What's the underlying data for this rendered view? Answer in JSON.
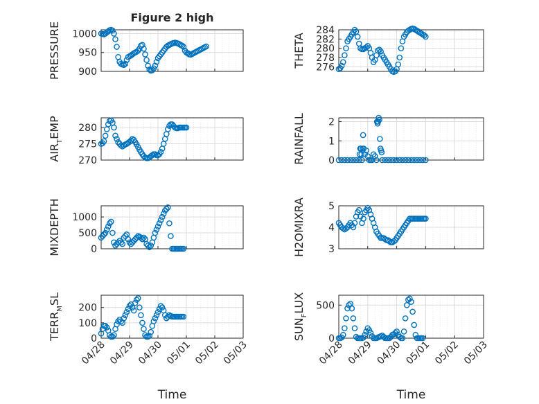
{
  "figure": {
    "title": "Figure 2 high"
  },
  "x_axis": {
    "label": "Time",
    "ticks": [
      "04/28",
      "04/29",
      "04/30",
      "05/01",
      "05/02",
      "05/03"
    ]
  },
  "chart_data": [
    {
      "type": "scatter",
      "name": "pressure-panel",
      "title": "Figure 2 high",
      "ylabel": "PRESSURE",
      "ylim": [
        900,
        1010
      ],
      "yticks": [
        900,
        950,
        1000
      ],
      "x": [
        0,
        0.05,
        0.1,
        0.15,
        0.2,
        0.25,
        0.3,
        0.35,
        0.4,
        0.45,
        0.5,
        0.55,
        0.6,
        0.65,
        0.7,
        0.75,
        0.8,
        0.85,
        0.9,
        0.95,
        1.0,
        1.05,
        1.1,
        1.15,
        1.2,
        1.25,
        1.3,
        1.35,
        1.4,
        1.45,
        1.5,
        1.55,
        1.6,
        1.65,
        1.7,
        1.75,
        1.8,
        1.85,
        1.9,
        1.95,
        2.0,
        2.05,
        2.1,
        2.15,
        2.2,
        2.25,
        2.3,
        2.35,
        2.4,
        2.45,
        2.5,
        2.55,
        2.6,
        2.65,
        2.7,
        2.75,
        2.8,
        2.85,
        2.9,
        2.95,
        3.0,
        3.05,
        3.1,
        3.15,
        3.2,
        3.25,
        3.3,
        3.35,
        3.4,
        3.45,
        3.5,
        3.55,
        3.6,
        3.65,
        3.7
      ],
      "values": [
        1000,
        999,
        998,
        1000,
        1003,
        1006,
        1009,
        1010,
        1008,
        1000,
        985,
        965,
        938,
        925,
        920,
        918,
        917,
        920,
        930,
        938,
        940,
        942,
        945,
        948,
        950,
        952,
        955,
        960,
        968,
        970,
        960,
        945,
        930,
        915,
        905,
        902,
        903,
        908,
        915,
        925,
        935,
        940,
        945,
        950,
        955,
        960,
        965,
        968,
        970,
        972,
        974,
        975,
        976,
        975,
        974,
        972,
        970,
        968,
        965,
        955,
        950,
        948,
        945,
        944,
        946,
        948,
        950,
        952,
        954,
        956,
        958,
        960,
        962,
        964,
        966
      ]
    },
    {
      "type": "scatter",
      "name": "theta-panel",
      "ylabel": "THETA",
      "ylim": [
        275,
        284
      ],
      "yticks": [
        276,
        278,
        280,
        282,
        284
      ],
      "x": [
        0,
        0.05,
        0.1,
        0.15,
        0.2,
        0.25,
        0.3,
        0.35,
        0.4,
        0.45,
        0.5,
        0.55,
        0.6,
        0.65,
        0.7,
        0.75,
        0.8,
        0.85,
        0.9,
        0.95,
        1.0,
        1.05,
        1.1,
        1.15,
        1.2,
        1.25,
        1.3,
        1.35,
        1.4,
        1.45,
        1.5,
        1.55,
        1.6,
        1.65,
        1.7,
        1.75,
        1.8,
        1.85,
        1.9,
        1.95,
        2.0,
        2.05,
        2.1,
        2.15,
        2.2,
        2.25,
        2.3,
        2.35,
        2.4,
        2.45,
        2.5,
        2.55,
        2.6,
        2.65,
        2.7,
        2.75,
        2.8,
        2.85,
        2.9,
        2.95,
        3.0
      ],
      "values": [
        275.5,
        275.7,
        276.2,
        277.0,
        278.5,
        280.0,
        281.5,
        282.0,
        282.5,
        283.0,
        283.5,
        284.0,
        283.6,
        282.5,
        281.0,
        280.0,
        279.8,
        279.8,
        280.0,
        280.2,
        280.5,
        280.0,
        279.0,
        278.0,
        277.0,
        277.5,
        278.5,
        279.5,
        279.7,
        279.3,
        278.5,
        278.0,
        277.5,
        277.0,
        276.5,
        276.0,
        275.5,
        275.0,
        274.9,
        275.0,
        275.5,
        276.5,
        278.0,
        280.0,
        281.5,
        282.5,
        283.0,
        283.5,
        283.8,
        284.0,
        284.2,
        284.3,
        284.2,
        284.0,
        283.8,
        283.6,
        283.4,
        283.2,
        283.0,
        282.8,
        282.5
      ]
    },
    {
      "type": "scatter",
      "name": "air-temp-panel",
      "ylabel": "AIR_TEMP",
      "ylim": [
        270,
        283
      ],
      "yticks": [
        270,
        275,
        280
      ],
      "x": [
        0,
        0.05,
        0.1,
        0.15,
        0.2,
        0.25,
        0.3,
        0.35,
        0.4,
        0.45,
        0.5,
        0.55,
        0.6,
        0.65,
        0.7,
        0.75,
        0.8,
        0.85,
        0.9,
        0.95,
        1.0,
        1.05,
        1.1,
        1.15,
        1.2,
        1.25,
        1.3,
        1.35,
        1.4,
        1.45,
        1.5,
        1.55,
        1.6,
        1.65,
        1.7,
        1.75,
        1.8,
        1.85,
        1.9,
        1.95,
        2.0,
        2.05,
        2.1,
        2.15,
        2.2,
        2.25,
        2.3,
        2.35,
        2.4,
        2.45,
        2.5,
        2.55,
        2.6,
        2.65,
        2.7,
        2.75,
        2.8,
        2.85,
        2.9,
        2.95,
        3.0
      ],
      "values": [
        275,
        275.2,
        275.8,
        277.5,
        279.5,
        281,
        282,
        282.2,
        281.5,
        280,
        277.5,
        276.5,
        275.5,
        275,
        274.5,
        274.2,
        274.5,
        274.8,
        275,
        275.3,
        275.6,
        276,
        276.5,
        276.2,
        275.5,
        274.8,
        274,
        273.2,
        272.5,
        271.8,
        271.2,
        270.8,
        270.6,
        270.6,
        270.8,
        271.2,
        271.5,
        271.8,
        271.8,
        271.5,
        271.5,
        271.8,
        272.5,
        273.5,
        275,
        276.5,
        278,
        279.5,
        280.5,
        281,
        281,
        280.5,
        280,
        279.8,
        279.8,
        280,
        280,
        280,
        280,
        280,
        280
      ]
    },
    {
      "type": "scatter",
      "name": "rainfall-panel",
      "ylabel": "RAINFALL",
      "ylim": [
        0,
        2.2
      ],
      "yticks": [
        0,
        1,
        2
      ],
      "x": [
        0,
        0.1,
        0.2,
        0.3,
        0.4,
        0.5,
        0.6,
        0.7,
        0.72,
        0.74,
        0.76,
        0.78,
        0.8,
        0.82,
        0.84,
        0.86,
        0.9,
        0.95,
        1.0,
        1.05,
        1.1,
        1.15,
        1.2,
        1.25,
        1.3,
        1.32,
        1.34,
        1.36,
        1.38,
        1.4,
        1.42,
        1.44,
        1.46,
        1.48,
        1.5,
        1.6,
        1.7,
        1.8,
        1.9,
        2.0,
        2.1,
        2.2,
        2.3,
        2.4,
        2.5,
        2.6,
        2.7,
        2.8,
        2.9,
        3.0
      ],
      "values": [
        0,
        0,
        0,
        0,
        0,
        0,
        0,
        0,
        0.3,
        0.6,
        0.6,
        0.3,
        0,
        0.6,
        1.3,
        0.6,
        0.3,
        0.5,
        0.2,
        0,
        0,
        0,
        0.3,
        0.2,
        0,
        2.0,
        1.9,
        2.0,
        2.2,
        2.1,
        1.1,
        0.6,
        0.5,
        0.4,
        0,
        0,
        0,
        0,
        0,
        0,
        0,
        0,
        0,
        0,
        0,
        0,
        0,
        0,
        0,
        0
      ]
    },
    {
      "type": "scatter",
      "name": "mixdepth-panel",
      "ylabel": "MIXDEPTH",
      "ylim": [
        0,
        1350
      ],
      "yticks": [
        0,
        500,
        1000
      ],
      "x": [
        0,
        0.05,
        0.1,
        0.15,
        0.2,
        0.25,
        0.3,
        0.35,
        0.4,
        0.45,
        0.5,
        0.55,
        0.6,
        0.65,
        0.7,
        0.75,
        0.8,
        0.85,
        0.9,
        0.95,
        1.0,
        1.05,
        1.1,
        1.15,
        1.2,
        1.25,
        1.3,
        1.35,
        1.4,
        1.45,
        1.5,
        1.55,
        1.6,
        1.65,
        1.7,
        1.75,
        1.8,
        1.85,
        1.9,
        1.95,
        2.0,
        2.05,
        2.1,
        2.15,
        2.2,
        2.25,
        2.3,
        2.35,
        2.4,
        2.45,
        2.5,
        2.55,
        2.6,
        2.65,
        2.7,
        2.75,
        2.8,
        2.85,
        2.9
      ],
      "values": [
        350,
        400,
        450,
        500,
        600,
        700,
        800,
        850,
        500,
        200,
        100,
        150,
        200,
        250,
        200,
        150,
        350,
        400,
        450,
        300,
        200,
        150,
        200,
        250,
        300,
        350,
        400,
        380,
        350,
        300,
        350,
        300,
        150,
        100,
        50,
        100,
        200,
        350,
        500,
        600,
        700,
        800,
        900,
        1000,
        1100,
        1200,
        1250,
        1300,
        800,
        400,
        0,
        0,
        0,
        0,
        0,
        0,
        0,
        0,
        0
      ]
    },
    {
      "type": "scatter",
      "name": "h2omixra-panel",
      "ylabel": "H2OMIXRA",
      "ylim": [
        3,
        5
      ],
      "yticks": [
        3,
        4,
        5
      ],
      "x": [
        0,
        0.05,
        0.1,
        0.15,
        0.2,
        0.25,
        0.3,
        0.35,
        0.4,
        0.45,
        0.5,
        0.55,
        0.6,
        0.65,
        0.7,
        0.75,
        0.8,
        0.85,
        0.9,
        0.95,
        1.0,
        1.05,
        1.1,
        1.15,
        1.2,
        1.25,
        1.3,
        1.35,
        1.4,
        1.45,
        1.5,
        1.55,
        1.6,
        1.65,
        1.7,
        1.75,
        1.8,
        1.85,
        1.9,
        1.95,
        2.0,
        2.05,
        2.1,
        2.15,
        2.2,
        2.25,
        2.3,
        2.35,
        2.4,
        2.45,
        2.5,
        2.55,
        2.6,
        2.65,
        2.7,
        2.75,
        2.8,
        2.85,
        2.9,
        2.95,
        3.0
      ],
      "values": [
        4.2,
        4.1,
        4.0,
        3.95,
        3.9,
        3.95,
        4.0,
        4.1,
        4.2,
        4.1,
        4.0,
        4.2,
        4.5,
        4.7,
        4.8,
        4.5,
        4.2,
        4.4,
        4.7,
        4.8,
        4.9,
        4.8,
        4.6,
        4.4,
        4.2,
        4.0,
        3.8,
        3.7,
        3.6,
        3.5,
        3.5,
        3.5,
        3.45,
        3.4,
        3.4,
        3.35,
        3.3,
        3.3,
        3.35,
        3.4,
        3.5,
        3.6,
        3.7,
        3.8,
        3.9,
        4.0,
        4.1,
        4.2,
        4.3,
        4.4,
        4.4,
        4.4,
        4.4,
        4.4,
        4.4,
        4.4,
        4.4,
        4.4,
        4.4,
        4.4,
        4.4
      ]
    },
    {
      "type": "scatter",
      "name": "terr-msl-panel",
      "ylabel": "TERR_MSL",
      "ylim": [
        0,
        280
      ],
      "yticks": [
        0,
        100,
        200
      ],
      "x": [
        0,
        0.05,
        0.1,
        0.15,
        0.2,
        0.25,
        0.3,
        0.35,
        0.4,
        0.45,
        0.5,
        0.55,
        0.6,
        0.65,
        0.7,
        0.75,
        0.8,
        0.85,
        0.9,
        0.95,
        1.0,
        1.05,
        1.1,
        1.15,
        1.2,
        1.25,
        1.3,
        1.35,
        1.4,
        1.45,
        1.5,
        1.55,
        1.6,
        1.65,
        1.7,
        1.75,
        1.8,
        1.85,
        1.9,
        1.95,
        2.0,
        2.05,
        2.1,
        2.15,
        2.2,
        2.25,
        2.3,
        2.35,
        2.4,
        2.45,
        2.5,
        2.55,
        2.6,
        2.65,
        2.7,
        2.75,
        2.8,
        2.85,
        2.9
      ],
      "values": [
        30,
        60,
        80,
        80,
        70,
        50,
        20,
        10,
        10,
        20,
        60,
        90,
        110,
        120,
        110,
        100,
        130,
        150,
        170,
        190,
        210,
        220,
        200,
        180,
        230,
        250,
        260,
        200,
        150,
        100,
        60,
        20,
        10,
        10,
        15,
        40,
        80,
        110,
        130,
        150,
        170,
        190,
        210,
        200,
        180,
        150,
        130,
        140,
        150,
        145,
        140,
        140,
        140,
        140,
        140,
        140,
        140,
        140,
        140
      ]
    },
    {
      "type": "scatter",
      "name": "sun-flux-panel",
      "ylabel": "SUN_FLUX",
      "ylim": [
        0,
        650
      ],
      "yticks": [
        0,
        500
      ],
      "x": [
        0,
        0.05,
        0.1,
        0.15,
        0.2,
        0.25,
        0.3,
        0.35,
        0.4,
        0.45,
        0.5,
        0.55,
        0.6,
        0.65,
        0.7,
        0.75,
        0.8,
        0.85,
        0.9,
        0.95,
        1.0,
        1.05,
        1.1,
        1.15,
        1.2,
        1.25,
        1.3,
        1.35,
        1.4,
        1.45,
        1.5,
        1.55,
        1.6,
        1.65,
        1.7,
        1.75,
        1.8,
        1.85,
        1.9,
        1.95,
        2.0,
        2.05,
        2.1,
        2.15,
        2.2,
        2.25,
        2.3,
        2.35,
        2.4,
        2.45,
        2.5,
        2.55,
        2.6,
        2.65,
        2.7,
        2.75,
        2.8,
        2.85,
        2.9
      ],
      "values": [
        0,
        0,
        10,
        50,
        150,
        300,
        450,
        500,
        520,
        450,
        300,
        150,
        20,
        0,
        0,
        0,
        0,
        10,
        50,
        100,
        150,
        120,
        80,
        30,
        0,
        0,
        0,
        10,
        20,
        30,
        40,
        20,
        0,
        0,
        0,
        0,
        20,
        50,
        60,
        80,
        100,
        50,
        20,
        0,
        0,
        100,
        300,
        500,
        580,
        600,
        550,
        400,
        200,
        50,
        0,
        0,
        0,
        0,
        0
      ]
    }
  ]
}
